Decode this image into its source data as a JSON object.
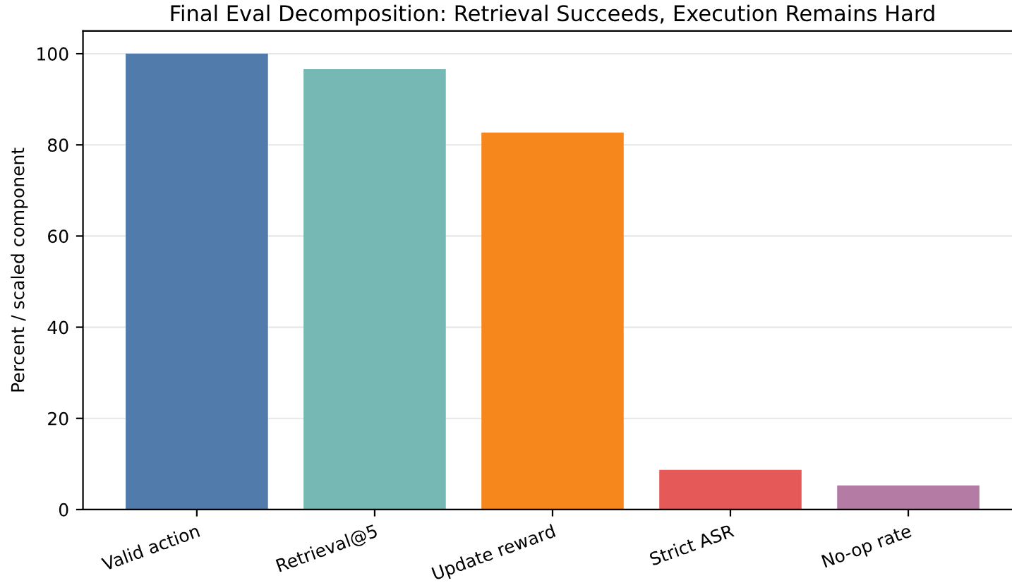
{
  "chart_data": {
    "type": "bar",
    "title": "Final Eval Decomposition: Retrieval Succeeds, Execution Remains Hard",
    "ylabel": "Percent / scaled component",
    "categories": [
      "Valid action",
      "Retrieval@5",
      "Update reward",
      "Strict ASR",
      "No-op rate"
    ],
    "values": [
      100,
      96.6,
      82.7,
      8.7,
      5.3
    ],
    "colors": [
      "#4c78a8",
      "#72b7b2",
      "#f58518",
      "#e45756",
      "#b279a2"
    ],
    "ylim": [
      0,
      105
    ],
    "yticks": [
      0,
      20,
      40,
      60,
      80,
      100
    ],
    "grid": "y"
  }
}
